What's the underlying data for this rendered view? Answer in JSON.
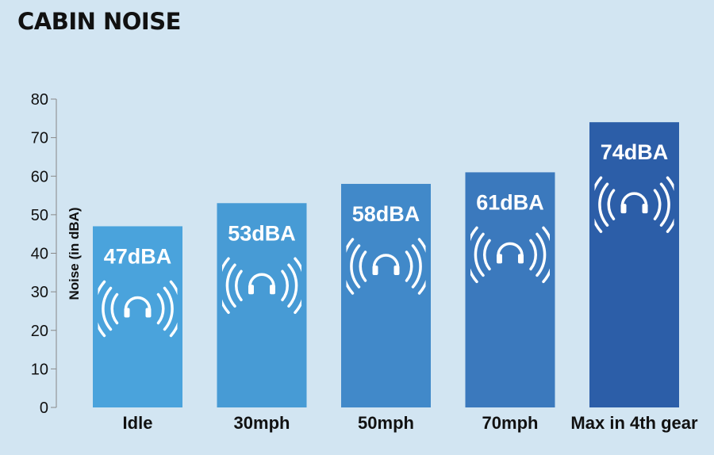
{
  "chart_data": {
    "type": "bar",
    "title": "CABIN NOISE",
    "ylabel": "Noise (in dBA)",
    "xlabel": "",
    "categories": [
      "Idle",
      "30mph",
      "50mph",
      "70mph",
      "Max in 4th gear"
    ],
    "values": [
      47,
      53,
      58,
      61,
      74
    ],
    "data_labels": [
      "47dBA",
      "53dBA",
      "58dBA",
      "61dBA",
      "74dBA"
    ],
    "yticks": [
      0,
      10,
      20,
      30,
      40,
      50,
      60,
      70,
      80
    ],
    "ylim": [
      0,
      80
    ],
    "grid": false,
    "bar_colors": [
      "#4aa3dc",
      "#479bd5",
      "#4189c9",
      "#3b79bd",
      "#2c5ea8"
    ],
    "bar_icon": "headphones-sound-icon"
  }
}
